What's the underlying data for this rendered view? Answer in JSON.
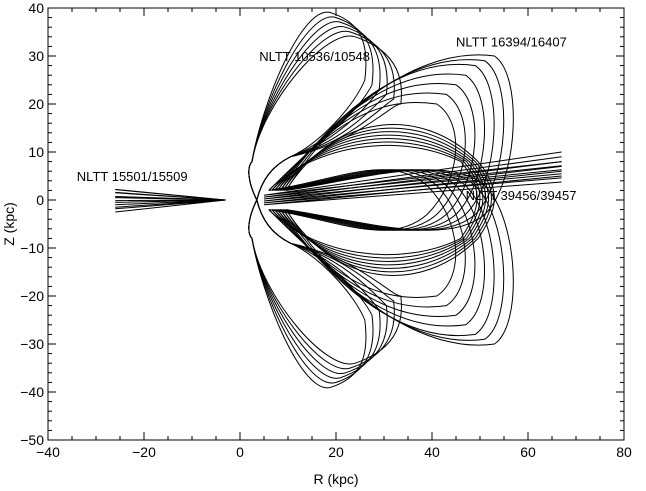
{
  "chart_data": {
    "type": "line",
    "title": "",
    "xlabel": "R (kpc)",
    "ylabel": "Z (kpc)",
    "xlim": [
      -40,
      80
    ],
    "ylim": [
      -50,
      40
    ],
    "grid": false,
    "legend": "none",
    "x_ticks": [
      -40,
      -20,
      0,
      20,
      40,
      60,
      80
    ],
    "y_ticks": [
      -50,
      -40,
      -30,
      -20,
      -10,
      0,
      10,
      20,
      30,
      40
    ],
    "x_minor_step": 5,
    "y_minor_step": 2,
    "annotations": [
      {
        "text": "NLTT 10536/10548",
        "x": 4,
        "y": 29
      },
      {
        "text": "NLTT 16394/16407",
        "x": 45,
        "y": 32
      },
      {
        "text": "NLTT 15501/15509",
        "x": -34,
        "y": 4
      },
      {
        "text": "NLTT 39456/39457",
        "x": 47,
        "y": 0
      }
    ],
    "orbit_groups": [
      {
        "label": "NLTT 10536/10548",
        "kind": "bowtie",
        "r_min": 2.5,
        "r_apex": [
          [
            19,
            39
          ],
          [
            20,
            38
          ],
          [
            21,
            37
          ],
          [
            22,
            36
          ],
          [
            23,
            35
          ],
          [
            24,
            34
          ]
        ],
        "r_far": [
          27,
          28.5,
          30,
          31.5,
          33,
          34.5
        ],
        "z_inner": 8
      },
      {
        "label": "NLTT 16394/16407",
        "kind": "loop",
        "r_min": 6,
        "r_max": [
          45,
          47,
          49,
          51,
          53,
          55,
          57
        ],
        "z_max": [
          20,
          22,
          24,
          26,
          28,
          29,
          30
        ]
      },
      {
        "label": "NLTT 15501/15509",
        "kind": "fan",
        "r_tip": -3,
        "r_end": -26,
        "z_end": [
          -2.5,
          -1.5,
          -0.5,
          0.5,
          1.5,
          2.2
        ]
      },
      {
        "label": "NLTT 39456/39457",
        "kind": "fan",
        "r_tip": 5,
        "r_end": 67,
        "z_end": [
          5,
          6,
          7,
          8,
          9,
          10
        ],
        "z_start": [
          -1,
          -0.6,
          -0.2,
          0.2,
          0.6,
          1.0
        ]
      }
    ]
  }
}
